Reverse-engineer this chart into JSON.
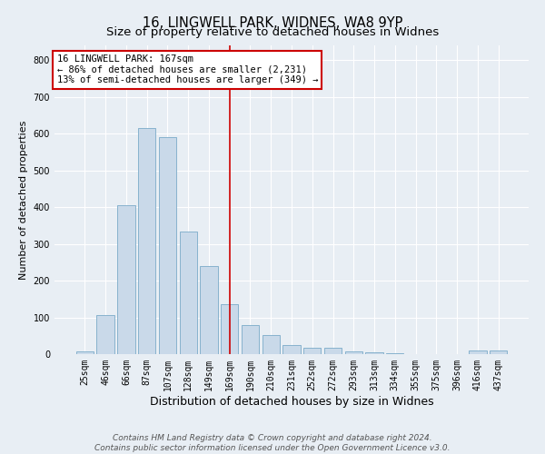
{
  "title1": "16, LINGWELL PARK, WIDNES, WA8 9YP",
  "title2": "Size of property relative to detached houses in Widnes",
  "xlabel": "Distribution of detached houses by size in Widnes",
  "ylabel": "Number of detached properties",
  "categories": [
    "25sqm",
    "46sqm",
    "66sqm",
    "87sqm",
    "107sqm",
    "128sqm",
    "149sqm",
    "169sqm",
    "190sqm",
    "210sqm",
    "231sqm",
    "252sqm",
    "272sqm",
    "293sqm",
    "313sqm",
    "334sqm",
    "355sqm",
    "375sqm",
    "396sqm",
    "416sqm",
    "437sqm"
  ],
  "values": [
    8,
    107,
    405,
    615,
    590,
    333,
    240,
    135,
    80,
    52,
    25,
    18,
    18,
    8,
    5,
    2,
    1,
    1,
    0,
    9,
    10
  ],
  "bar_color": "#c9d9e9",
  "bar_edge_color": "#7aaac8",
  "vline_x_index": 7,
  "vline_color": "#cc0000",
  "annotation_line1": "16 LINGWELL PARK: 167sqm",
  "annotation_line2": "← 86% of detached houses are smaller (2,231)",
  "annotation_line3": "13% of semi-detached houses are larger (349) →",
  "annotation_box_color": "#cc0000",
  "annotation_box_fill": "#ffffff",
  "ylim": [
    0,
    840
  ],
  "yticks": [
    0,
    100,
    200,
    300,
    400,
    500,
    600,
    700,
    800
  ],
  "footer1": "Contains HM Land Registry data © Crown copyright and database right 2024.",
  "footer2": "Contains public sector information licensed under the Open Government Licence v3.0.",
  "bg_color": "#e8eef4",
  "grid_color": "#ffffff",
  "title1_fontsize": 10.5,
  "title2_fontsize": 9.5,
  "xlabel_fontsize": 9,
  "ylabel_fontsize": 8,
  "tick_fontsize": 7,
  "ann_fontsize": 7.5,
  "footer_fontsize": 6.5
}
